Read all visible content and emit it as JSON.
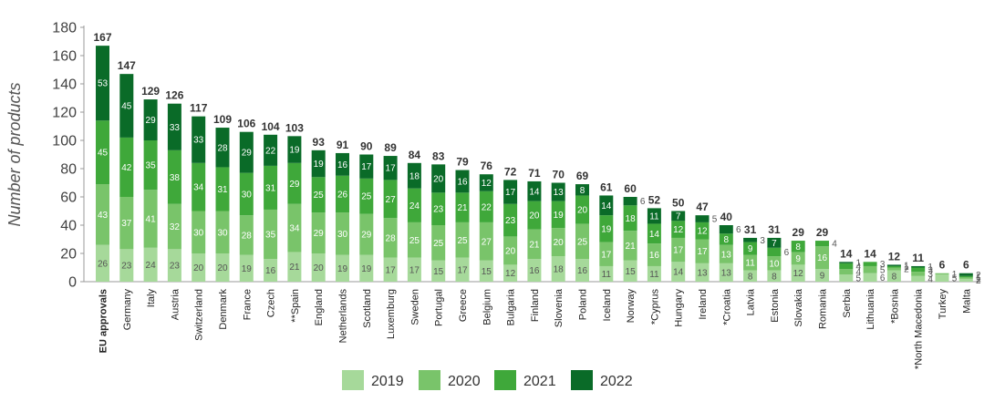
{
  "chart_data": {
    "type": "bar",
    "stacked": true,
    "ylabel": "Number of products",
    "ylim": [
      0,
      180
    ],
    "yticks": [
      0,
      20,
      40,
      60,
      80,
      100,
      120,
      140,
      160,
      180
    ],
    "legend_position": "bottom",
    "grid": false,
    "categories": [
      "EU approvals",
      "Germany",
      "Italy",
      "Austria",
      "Switzerland",
      "Denmark",
      "France",
      "Czech",
      "**Spain",
      "England",
      "Netherlands",
      "Scotland",
      "Luxemburg",
      "Sweden",
      "Portugal",
      "Greece",
      "Belgium",
      "Bulgaria",
      "Finland",
      "Slovenia",
      "Poland",
      "Iceland",
      "Norway",
      "*Cyprus",
      "Hungary",
      "Ireland",
      "*Croatia",
      "Latvia",
      "Estonia",
      "Slovakia",
      "Romania",
      "Serbia",
      "Lithuania",
      "*Bosnia",
      "*North Macedonia",
      "Turkey",
      "Malta"
    ],
    "totals": [
      167,
      147,
      129,
      126,
      117,
      109,
      106,
      104,
      103,
      93,
      91,
      90,
      89,
      84,
      83,
      79,
      76,
      72,
      71,
      70,
      69,
      61,
      60,
      52,
      50,
      47,
      40,
      31,
      31,
      29,
      29,
      14,
      14,
      12,
      11,
      6,
      6
    ],
    "series": [
      {
        "name": "2019",
        "color": "#a6d99a",
        "values": [
          26,
          23,
          24,
          23,
          20,
          20,
          19,
          16,
          21,
          20,
          19,
          19,
          17,
          17,
          15,
          17,
          15,
          12,
          16,
          18,
          16,
          11,
          15,
          11,
          14,
          13,
          13,
          8,
          8,
          12,
          9,
          5,
          6,
          8,
          4,
          5,
          2
        ]
      },
      {
        "name": "2020",
        "color": "#79c46a",
        "values": [
          43,
          37,
          41,
          32,
          30,
          30,
          28,
          35,
          34,
          29,
          30,
          29,
          28,
          25,
          25,
          25,
          27,
          20,
          21,
          20,
          25,
          17,
          21,
          16,
          17,
          17,
          13,
          11,
          10,
          9,
          16,
          4,
          5,
          2,
          3,
          1,
          1
        ]
      },
      {
        "name": "2021",
        "color": "#3fa83a",
        "values": [
          45,
          42,
          35,
          38,
          34,
          31,
          30,
          31,
          29,
          25,
          26,
          25,
          27,
          24,
          23,
          21,
          22,
          23,
          20,
          19,
          20,
          19,
          18,
          14,
          12,
          12,
          8,
          9,
          6,
          8,
          4,
          4,
          3,
          1,
          3,
          0,
          1
        ]
      },
      {
        "name": "2022",
        "color": "#0a6b28",
        "values": [
          53,
          45,
          29,
          33,
          33,
          28,
          29,
          22,
          19,
          19,
          16,
          17,
          17,
          18,
          20,
          16,
          12,
          17,
          14,
          13,
          8,
          14,
          6,
          11,
          7,
          5,
          6,
          3,
          7,
          0,
          0,
          1,
          0,
          1,
          1,
          0,
          2
        ]
      }
    ]
  }
}
